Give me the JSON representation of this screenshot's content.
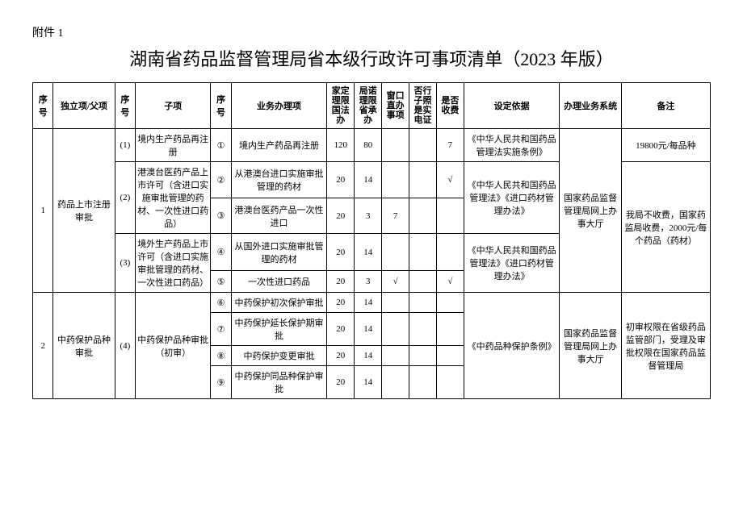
{
  "annex": "附件 1",
  "title": "湖南省药品监督管理局省本级行政许可事项清单（2023 年版）",
  "headers": {
    "seq": "序号",
    "independent": "独立项/父项",
    "subSeq": "序号",
    "subItem": "子项",
    "bizSeq": "序号",
    "bizItem": "业务办理项",
    "nationalTime": "家定理限国法办",
    "localTime": "局诺理限省承办",
    "windowDirect": "窗口直办事项",
    "ecert": "否行子照是实电证",
    "feeYN": "是否收费",
    "basis": "设定依据",
    "system": "办理业务系统",
    "remark": "备注"
  },
  "rows": {
    "r1_seq": "1",
    "r1_ind": "药品上市注册审批",
    "r1_s1_seq": "(1)",
    "r1_s1_sub": "境内生产药品再注册",
    "r1_b1_seq": "①",
    "r1_b1_biz": "境内生产药品再注册",
    "r1_b1_nat": "120",
    "r1_b1_loc": "80",
    "r1_b1_win": "",
    "r1_b1_ecert": "",
    "r1_b1_fee": "7",
    "r1_basis1": "《中华人民共和国药品管理法实施条例》",
    "r1_sys": "国家药品监督管理局网上办事大厅",
    "r1_rem1": "19800元/每品种",
    "r1_rem2": "我局不收费，国家药监局收费，2000元/每个药品（药材）",
    "r1_s2_seq": "(2)",
    "r1_s2_sub": "港澳台医药产品上市许可（含进口实施审批管理的药材、一次性进口药品）",
    "r1_b2_seq": "②",
    "r1_b2_biz": "从港澳台进口实施审批管理的药材",
    "r1_b2_nat": "20",
    "r1_b2_loc": "14",
    "r1_b2_win": "",
    "r1_b2_ecert": "",
    "r1_b2_fee": "√",
    "r1_basis2": "《中华人民共和国药品管理法》《进口药材管理办法》",
    "r1_b3_seq": "③",
    "r1_b3_biz": "港澳台医药产品一次性进口",
    "r1_b3_nat": "20",
    "r1_b3_loc": "3",
    "r1_b3_win": "7",
    "r1_b3_ecert": "",
    "r1_b3_fee": "",
    "r1_s3_seq": "(3)",
    "r1_s3_sub": "境外生产药品上市许可（含进口实施审批管理的药材、一次性进口药品）",
    "r1_b4_seq": "④",
    "r1_b4_biz": "从国外进口实施审批管理的药材",
    "r1_b4_nat": "20",
    "r1_b4_loc": "14",
    "r1_b4_win": "",
    "r1_b4_ecert": "",
    "r1_b4_fee": "",
    "r1_basis3": "《中华人民共和国药品管理法》《进口药材管理办法》",
    "r1_b5_seq": "⑤",
    "r1_b5_biz": "一次性进口药品",
    "r1_b5_nat": "20",
    "r1_b5_loc": "3",
    "r1_b5_win": "√",
    "r1_b5_ecert": "",
    "r1_b5_fee": "√",
    "r2_seq": "2",
    "r2_ind": "中药保护品种审批",
    "r2_s1_seq": "(4)",
    "r2_s1_sub": "中药保护品种审批（初审）",
    "r2_b6_seq": "⑥",
    "r2_b6_biz": "中药保护初次保护审批",
    "r2_b6_nat": "20",
    "r2_b6_loc": "14",
    "r2_basis": "《中药品种保护条例》",
    "r2_sys": "国家药品监督管理局网上办事大厅",
    "r2_rem": "初审权限在省级药品监管部门，受理及审批权限在国家药品监督管理局",
    "r2_b7_seq": "⑦",
    "r2_b7_biz": "中药保护延长保护期审批",
    "r2_b7_nat": "20",
    "r2_b7_loc": "14",
    "r2_b8_seq": "⑧",
    "r2_b8_biz": "中药保护变更审批",
    "r2_b8_nat": "20",
    "r2_b8_loc": "14",
    "r2_b9_seq": "⑨",
    "r2_b9_biz": "中药保护同品种保护审批",
    "r2_b9_nat": "20",
    "r2_b9_loc": "14"
  }
}
